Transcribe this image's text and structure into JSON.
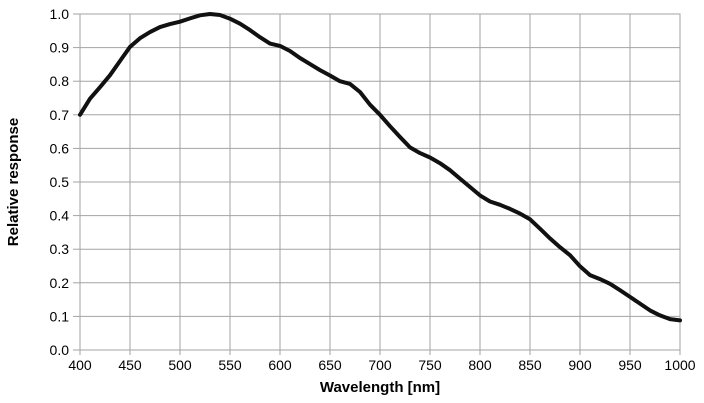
{
  "page": {
    "background_color": "#ffffff",
    "title": ""
  },
  "chart_data": {
    "type": "line",
    "title": "",
    "xlabel": "Wavelength [nm]",
    "ylabel": "Relative response",
    "xlim": [
      400,
      1000
    ],
    "ylim": [
      0.0,
      1.0
    ],
    "x_ticks": [
      400,
      450,
      500,
      550,
      600,
      650,
      700,
      750,
      800,
      850,
      900,
      950,
      1000
    ],
    "y_ticks": [
      0.0,
      0.1,
      0.2,
      0.3,
      0.4,
      0.5,
      0.6,
      0.7,
      0.8,
      0.9,
      1.0
    ],
    "y_tick_decimals": 1,
    "grid": true,
    "legend": false,
    "grid_color": "#a3a3a3",
    "curve_color": "#111111",
    "curve_width": 4,
    "text_color": "#000000",
    "series": [
      {
        "name": "relative-response",
        "x": [
          400,
          410,
          420,
          430,
          440,
          450,
          460,
          470,
          480,
          490,
          500,
          510,
          520,
          530,
          540,
          550,
          560,
          570,
          580,
          590,
          600,
          610,
          620,
          630,
          640,
          650,
          660,
          670,
          680,
          690,
          700,
          710,
          720,
          730,
          740,
          750,
          760,
          770,
          780,
          790,
          800,
          810,
          820,
          830,
          840,
          850,
          860,
          870,
          880,
          890,
          900,
          910,
          920,
          930,
          940,
          950,
          960,
          970,
          980,
          990,
          1000
        ],
        "y": [
          0.7,
          0.748,
          0.782,
          0.818,
          0.86,
          0.902,
          0.928,
          0.946,
          0.961,
          0.97,
          0.977,
          0.987,
          0.996,
          1.0,
          0.997,
          0.986,
          0.971,
          0.952,
          0.931,
          0.912,
          0.905,
          0.89,
          0.869,
          0.851,
          0.833,
          0.817,
          0.8,
          0.792,
          0.768,
          0.73,
          0.7,
          0.666,
          0.634,
          0.603,
          0.586,
          0.573,
          0.556,
          0.535,
          0.51,
          0.485,
          0.46,
          0.442,
          0.432,
          0.42,
          0.406,
          0.389,
          0.361,
          0.332,
          0.306,
          0.282,
          0.249,
          0.223,
          0.211,
          0.197,
          0.178,
          0.158,
          0.138,
          0.118,
          0.103,
          0.092,
          0.088
        ]
      }
    ]
  }
}
